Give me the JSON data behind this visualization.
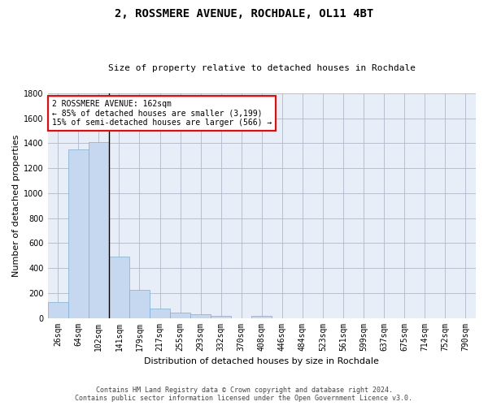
{
  "title": "2, ROSSMERE AVENUE, ROCHDALE, OL11 4BT",
  "subtitle": "Size of property relative to detached houses in Rochdale",
  "xlabel": "Distribution of detached houses by size in Rochdale",
  "ylabel": "Number of detached properties",
  "bar_color": "#c5d8ef",
  "bar_edge_color": "#7bafd4",
  "categories": [
    "26sqm",
    "64sqm",
    "102sqm",
    "141sqm",
    "179sqm",
    "217sqm",
    "255sqm",
    "293sqm",
    "332sqm",
    "370sqm",
    "408sqm",
    "446sqm",
    "484sqm",
    "523sqm",
    "561sqm",
    "599sqm",
    "637sqm",
    "675sqm",
    "714sqm",
    "752sqm",
    "790sqm"
  ],
  "values": [
    130,
    1350,
    1410,
    490,
    225,
    75,
    45,
    28,
    15,
    0,
    18,
    0,
    0,
    0,
    0,
    0,
    0,
    0,
    0,
    0,
    0
  ],
  "ylim": [
    0,
    1800
  ],
  "yticks": [
    0,
    200,
    400,
    600,
    800,
    1000,
    1200,
    1400,
    1600,
    1800
  ],
  "vline_x": 2.5,
  "annotation_line1": "2 ROSSMERE AVENUE: 162sqm",
  "annotation_line2": "← 85% of detached houses are smaller (3,199)",
  "annotation_line3": "15% of semi-detached houses are larger (566) →",
  "footnote1": "Contains HM Land Registry data © Crown copyright and database right 2024.",
  "footnote2": "Contains public sector information licensed under the Open Government Licence v3.0.",
  "background_color": "#e8eef7",
  "grid_color": "#b0b8c8",
  "title_fontsize": 10,
  "subtitle_fontsize": 8,
  "ylabel_fontsize": 8,
  "xlabel_fontsize": 8,
  "tick_fontsize": 7,
  "annotation_fontsize": 7,
  "footnote_fontsize": 6
}
